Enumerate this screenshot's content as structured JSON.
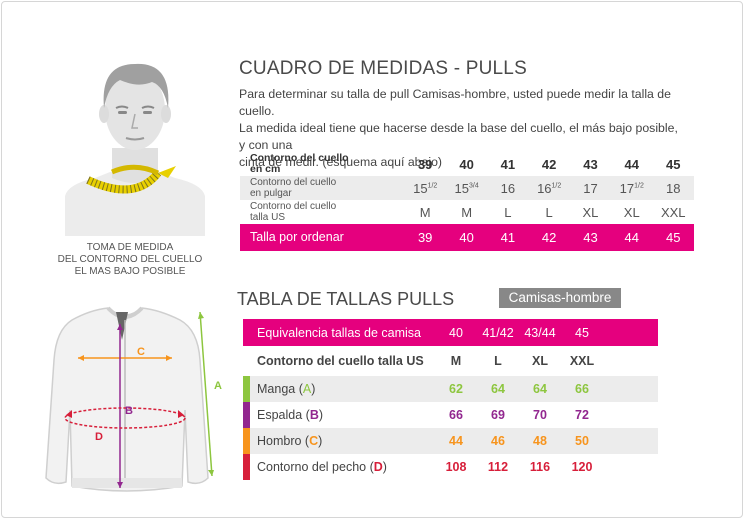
{
  "title": "CUADRO DE MEDIDAS - PULLS",
  "intro": {
    "line1": "Para determinar su talla de pull Camisas-hombre, usted puede medir la talla de cuello.",
    "line2": "La medida ideal tiene que hacerse desde la base del cuello, el más bajo posible, y con una",
    "line3": "cinta de medir. (esquema aquí abajo)"
  },
  "caption": {
    "line1": "TOMA DE MEDIDA",
    "line2": "DEL CONTORNO DEL CUELLO",
    "line3": "EL MAS BAJO POSIBLE"
  },
  "neck_table": {
    "rows": [
      {
        "label1": "Contorno del cuello",
        "label2": "en cm",
        "values": [
          "39",
          "40",
          "41",
          "42",
          "43",
          "44",
          "45"
        ]
      },
      {
        "label1": "Contorno del cuello",
        "label2": "en pulgar",
        "values": [
          "15",
          "15",
          "16",
          "16",
          "17",
          "17",
          "18"
        ],
        "fractions": [
          "1/2",
          "3/4",
          "",
          "1/2",
          "",
          "1/2",
          ""
        ]
      },
      {
        "label1": "Contorno del cuello",
        "label2": "talla US",
        "values": [
          "M",
          "M",
          "L",
          "L",
          "XL",
          "XL",
          "XXL"
        ]
      },
      {
        "label1": "Talla por ordenar",
        "label2": "",
        "values": [
          "39",
          "40",
          "41",
          "42",
          "43",
          "44",
          "45"
        ]
      }
    ]
  },
  "sizes_title": "TABLA DE TALLAS PULLS",
  "sizes_tag": "Camisas-hombre",
  "sizes_table": {
    "equiv_label": "Equivalencia tallas de camisa",
    "equiv_values": [
      "40",
      "41/42",
      "43/44",
      "45"
    ],
    "head_label": "Contorno del cuello talla US",
    "head_values": [
      "M",
      "L",
      "XL",
      "XXL"
    ],
    "rows": [
      {
        "name": "Manga (",
        "letter": "A",
        "close": ")",
        "color": "#8dc63f",
        "values": [
          "62",
          "64",
          "64",
          "66"
        ]
      },
      {
        "name": "Espalda (",
        "letter": "B",
        "close": ")",
        "color": "#92278f",
        "values": [
          "66",
          "69",
          "70",
          "72"
        ]
      },
      {
        "name": "Hombro (",
        "letter": "C",
        "close": ")",
        "color": "#f7941d",
        "values": [
          "44",
          "46",
          "48",
          "50"
        ]
      },
      {
        "name": "Contorno del pecho (",
        "letter": "D",
        "close": ")",
        "color": "#d71f3a",
        "values": [
          "108",
          "112",
          "116",
          "120"
        ]
      }
    ]
  },
  "diagram_letters": {
    "a": "A",
    "b": "B",
    "c": "C",
    "d": "D"
  },
  "colors": {
    "accent": "#e5007e",
    "tag": "#888888",
    "tape": "#e8d000"
  }
}
